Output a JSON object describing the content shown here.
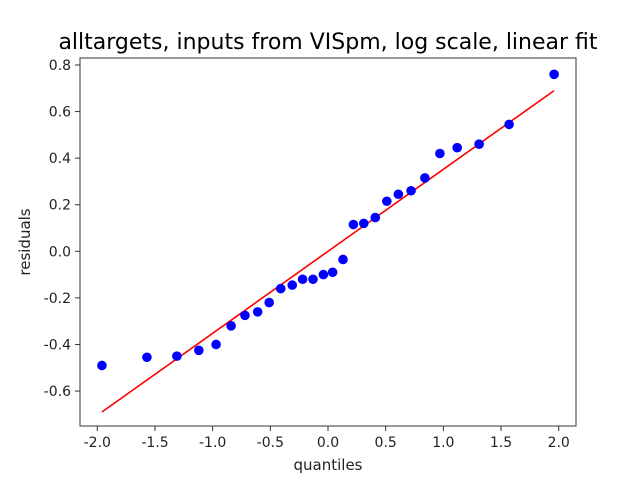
{
  "chart_data": {
    "type": "scatter",
    "title": "alltargets, inputs from VISpm, log scale, linear fit",
    "xlabel": "quantiles",
    "ylabel": "residuals",
    "xlim": [
      -2.15,
      2.15
    ],
    "ylim": [
      -0.75,
      0.83
    ],
    "xticks": [
      "-2.0",
      "-1.5",
      "-1.0",
      "-0.5",
      "0.0",
      "0.5",
      "1.0",
      "1.5",
      "2.0"
    ],
    "yticks": [
      "-0.6",
      "-0.4",
      "-0.2",
      "0.0",
      "0.2",
      "0.4",
      "0.6",
      "0.8"
    ],
    "grid": false,
    "series": [
      {
        "type": "scatter",
        "color": "#0000ff",
        "points": [
          [
            -1.96,
            -0.49
          ],
          [
            -1.57,
            -0.455
          ],
          [
            -1.31,
            -0.45
          ],
          [
            -1.12,
            -0.425
          ],
          [
            -0.97,
            -0.4
          ],
          [
            -0.84,
            -0.32
          ],
          [
            -0.72,
            -0.275
          ],
          [
            -0.61,
            -0.26
          ],
          [
            -0.51,
            -0.22
          ],
          [
            -0.41,
            -0.16
          ],
          [
            -0.31,
            -0.145
          ],
          [
            -0.22,
            -0.12
          ],
          [
            -0.13,
            -0.12
          ],
          [
            -0.04,
            -0.1
          ],
          [
            0.04,
            -0.09
          ],
          [
            0.13,
            -0.035
          ],
          [
            0.22,
            0.115
          ],
          [
            0.31,
            0.12
          ],
          [
            0.41,
            0.145
          ],
          [
            0.51,
            0.215
          ],
          [
            0.61,
            0.245
          ],
          [
            0.72,
            0.26
          ],
          [
            0.84,
            0.315
          ],
          [
            0.97,
            0.42
          ],
          [
            1.12,
            0.445
          ],
          [
            1.31,
            0.46
          ],
          [
            1.57,
            0.545
          ],
          [
            1.96,
            0.76
          ]
        ]
      },
      {
        "type": "line",
        "color": "#ff0000",
        "points": [
          [
            -1.96,
            -0.69
          ],
          [
            1.96,
            0.69
          ]
        ]
      }
    ]
  }
}
